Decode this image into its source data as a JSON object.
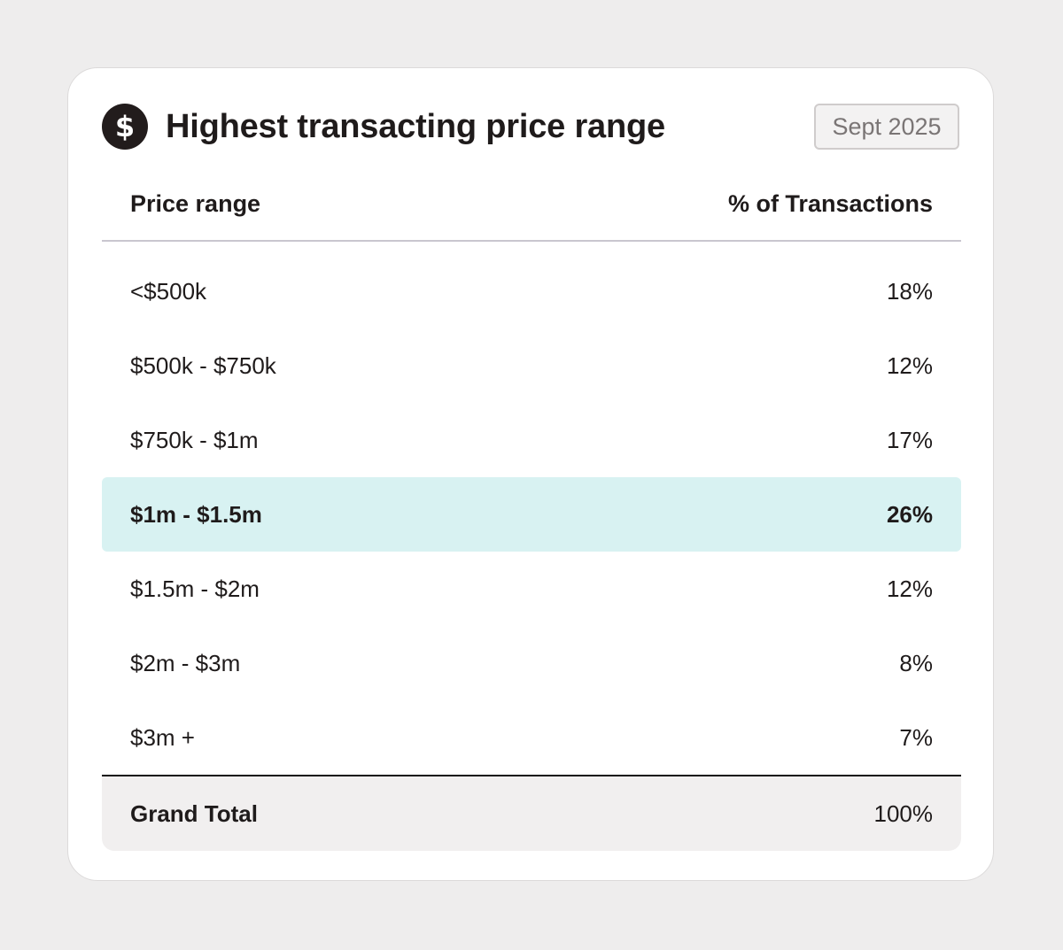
{
  "card": {
    "title": "Highest transacting price range",
    "icon": "dollar-circle-icon",
    "date_badge": "Sept 2025"
  },
  "table": {
    "headers": {
      "left": "Price range",
      "right": "% of Transactions"
    },
    "rows": [
      {
        "range": "<$500k",
        "percent": "18%"
      },
      {
        "range": "$500k - $750k",
        "percent": "12%"
      },
      {
        "range": "$750k - $1m",
        "percent": "17%"
      },
      {
        "range": "$1m - $1.5m",
        "percent": "26%",
        "highlighted": true
      },
      {
        "range": "$1.5m - $2m",
        "percent": "12%"
      },
      {
        "range": "$2m - $3m",
        "percent": "8%"
      },
      {
        "range": "$3m +",
        "percent": "7%"
      }
    ],
    "total": {
      "label": "Grand Total",
      "percent": "100%"
    }
  },
  "colors": {
    "highlight_row": "#d8f2f2",
    "total_row": "#f1efef",
    "icon_bg": "#221c1c",
    "page_bg": "#eeeded"
  }
}
